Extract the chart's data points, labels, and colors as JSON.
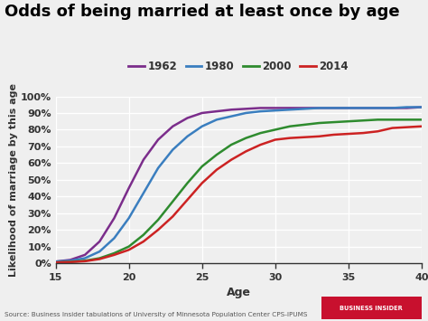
{
  "title": "Odds of being married at least once by age",
  "xlabel": "Age",
  "ylabel": "Likelihood of marriage by this age",
  "source": "Source: Business Insider tabulations of University of Minnesota Population Center CPS-IPUMS",
  "xlim": [
    15,
    40
  ],
  "ylim": [
    0,
    1.0
  ],
  "yticks": [
    0.0,
    0.1,
    0.2,
    0.3,
    0.4,
    0.5,
    0.6,
    0.7,
    0.8,
    0.9,
    1.0
  ],
  "xticks": [
    15,
    20,
    25,
    30,
    35,
    40
  ],
  "background_color": "#efefef",
  "series": {
    "1962": {
      "color": "#7b2d8b",
      "x": [
        15,
        16,
        17,
        18,
        19,
        20,
        21,
        22,
        23,
        24,
        25,
        26,
        27,
        28,
        29,
        30,
        31,
        32,
        33,
        34,
        35,
        36,
        37,
        38,
        39,
        40
      ],
      "y": [
        0.01,
        0.02,
        0.05,
        0.13,
        0.27,
        0.45,
        0.62,
        0.74,
        0.82,
        0.87,
        0.9,
        0.91,
        0.92,
        0.925,
        0.93,
        0.93,
        0.93,
        0.93,
        0.93,
        0.93,
        0.93,
        0.93,
        0.93,
        0.93,
        0.93,
        0.935
      ]
    },
    "1980": {
      "color": "#3a7ebf",
      "x": [
        15,
        16,
        17,
        18,
        19,
        20,
        21,
        22,
        23,
        24,
        25,
        26,
        27,
        28,
        29,
        30,
        31,
        32,
        33,
        34,
        35,
        36,
        37,
        38,
        39,
        40
      ],
      "y": [
        0.01,
        0.015,
        0.03,
        0.07,
        0.15,
        0.27,
        0.42,
        0.57,
        0.68,
        0.76,
        0.82,
        0.86,
        0.88,
        0.9,
        0.91,
        0.915,
        0.92,
        0.925,
        0.93,
        0.93,
        0.93,
        0.93,
        0.93,
        0.93,
        0.935,
        0.935
      ]
    },
    "2000": {
      "color": "#2e8b2e",
      "x": [
        15,
        16,
        17,
        18,
        19,
        20,
        21,
        22,
        23,
        24,
        25,
        26,
        27,
        28,
        29,
        30,
        31,
        32,
        33,
        34,
        35,
        36,
        37,
        38,
        39,
        40
      ],
      "y": [
        0.005,
        0.008,
        0.015,
        0.03,
        0.06,
        0.1,
        0.17,
        0.26,
        0.37,
        0.48,
        0.58,
        0.65,
        0.71,
        0.75,
        0.78,
        0.8,
        0.82,
        0.83,
        0.84,
        0.845,
        0.85,
        0.855,
        0.86,
        0.86,
        0.86,
        0.86
      ]
    },
    "2014": {
      "color": "#cc2222",
      "x": [
        15,
        16,
        17,
        18,
        19,
        20,
        21,
        22,
        23,
        24,
        25,
        26,
        27,
        28,
        29,
        30,
        31,
        32,
        33,
        34,
        35,
        36,
        37,
        38,
        39,
        40
      ],
      "y": [
        0.005,
        0.007,
        0.012,
        0.025,
        0.05,
        0.08,
        0.13,
        0.2,
        0.28,
        0.38,
        0.48,
        0.56,
        0.62,
        0.67,
        0.71,
        0.74,
        0.75,
        0.755,
        0.76,
        0.77,
        0.775,
        0.78,
        0.79,
        0.81,
        0.815,
        0.82
      ]
    }
  },
  "legend_labels": [
    "1962",
    "1980",
    "2000",
    "2014"
  ],
  "legend_colors": [
    "#7b2d8b",
    "#3a7ebf",
    "#2e8b2e",
    "#cc2222"
  ],
  "title_fontsize": 13,
  "label_fontsize": 8,
  "tick_fontsize": 8
}
